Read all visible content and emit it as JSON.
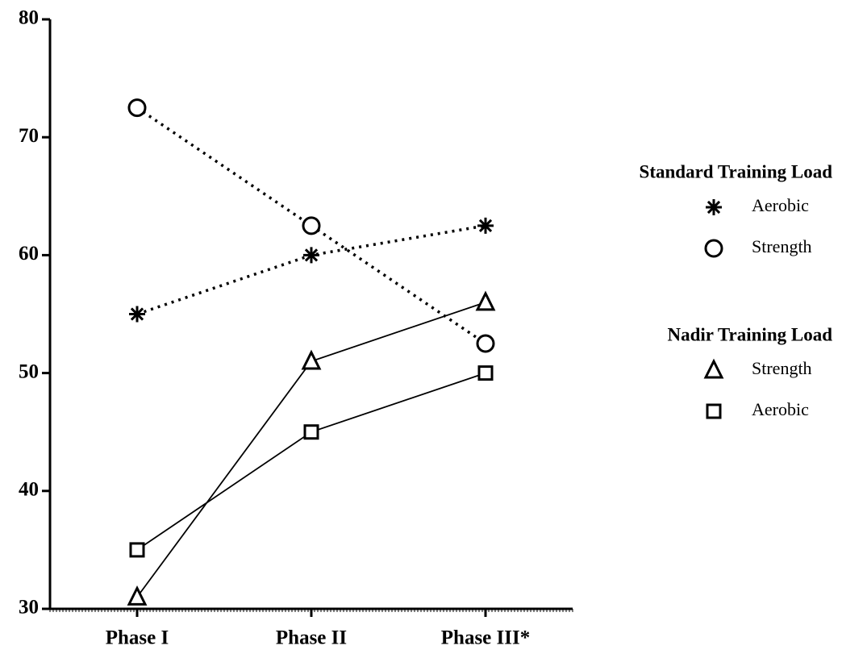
{
  "chart_data": {
    "type": "line",
    "categories": [
      "Phase I",
      "Phase II",
      "Phase III*"
    ],
    "ylim": [
      30,
      80
    ],
    "yticks": [
      30,
      40,
      50,
      60,
      70,
      80
    ],
    "legend_groups": [
      {
        "title": "Standard Training Load",
        "line": "dotted"
      },
      {
        "title": "Nadir Training Load",
        "line": "solid"
      }
    ],
    "series": [
      {
        "name": "Aerobic",
        "color": "#000000",
        "line": "dotted",
        "marker": "asterisk",
        "values": [
          55,
          60,
          62.5
        ]
      },
      {
        "name": "Strength",
        "color": "#000000",
        "line": "dotted",
        "marker": "circle",
        "values": [
          72.5,
          62.5,
          52.5
        ]
      },
      {
        "name": "Strength",
        "color": "#000000",
        "line": "solid",
        "marker": "triangle",
        "values": [
          31,
          51,
          56
        ]
      },
      {
        "name": "Aerobic",
        "color": "#000000",
        "line": "solid",
        "marker": "square",
        "values": [
          35,
          45,
          50
        ]
      }
    ]
  }
}
